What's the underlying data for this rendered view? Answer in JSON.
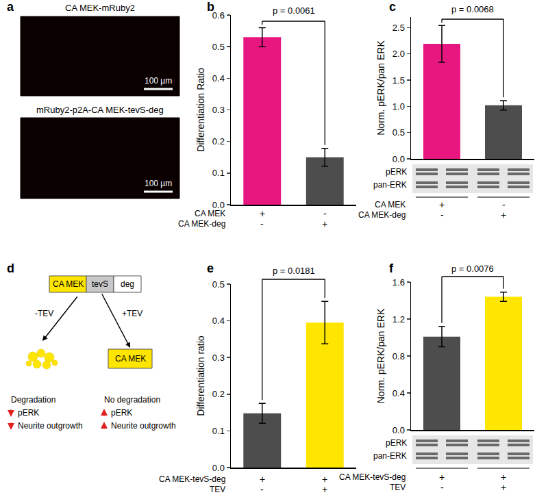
{
  "panel_a": {
    "label": "a",
    "images": [
      {
        "title": "CA MEK-mRuby2",
        "scale_bar": "100 µm"
      },
      {
        "title": "mRuby2-p2A-CA MEK-tevS-deg",
        "scale_bar": "100 µm"
      }
    ]
  },
  "panel_d": {
    "label": "d",
    "construct": [
      {
        "text": "CA MEK",
        "color": "#ffe600"
      },
      {
        "text": "tevS",
        "color": "#c8c8c8"
      },
      {
        "text": "deg",
        "color": "#ffffff"
      }
    ],
    "branches": [
      {
        "condition": "-TEV",
        "outcome": "Degradation",
        "effects": [
          "pERK",
          "Neurite outgrowth"
        ],
        "direction": "down"
      },
      {
        "condition": "+TEV",
        "product": "CA MEK",
        "outcome": "No degradation",
        "effects": [
          "pERK",
          "Neurite outgrowth"
        ],
        "direction": "up"
      }
    ]
  },
  "chart_data": [
    {
      "label": "b",
      "type": "bar",
      "categories": [
        null,
        null
      ],
      "values": [
        0.53,
        0.15
      ],
      "errors": [
        0.03,
        0.028
      ],
      "colors": [
        "#e8177f",
        "#4d4d4d"
      ],
      "ylim": [
        0,
        0.6
      ],
      "yticks": [
        {
          "value": 0,
          "label": "0.0"
        },
        0.1,
        0.2,
        0.3,
        0.4,
        0.5,
        0.6
      ],
      "y_label": "Differentiation Ratio",
      "tick_labels": "y",
      "grid": false,
      "comparison": "p = 0.0061",
      "conditions": [
        {
          "label": "CA MEK",
          "signs": [
            "+",
            "-"
          ]
        },
        {
          "label": "CA MEK-deg",
          "signs": [
            "-",
            "+"
          ]
        }
      ]
    },
    {
      "label": "c",
      "type": "bar",
      "categories": [
        null,
        null
      ],
      "values": [
        2.19,
        1.02
      ],
      "errors": [
        0.35,
        0.09
      ],
      "colors": [
        "#e8177f",
        "#4d4d4d"
      ],
      "ylim": [
        0,
        2.7
      ],
      "yticks": [
        {
          "value": 0,
          "label": "0.0"
        },
        0.5,
        {
          "value": 1,
          "label": "1.0"
        },
        1.5,
        {
          "value": 2,
          "label": "2.0"
        },
        2.5
      ],
      "y_label": "Norm. pERK/pan ERK",
      "tick_labels": "y",
      "grid": false,
      "comparison": "p = 0.0068",
      "blot": [
        "pERK",
        "pan-ERK"
      ],
      "conditions": [
        {
          "label": "CA MEK",
          "signs": [
            "+",
            "-"
          ]
        },
        {
          "label": "CA MEK-deg",
          "signs": [
            "-",
            "+"
          ]
        }
      ]
    },
    {
      "label": "e",
      "type": "bar",
      "categories": [
        null,
        null
      ],
      "values": [
        0.148,
        0.395
      ],
      "errors": [
        0.027,
        0.058
      ],
      "colors": [
        "#4d4d4d",
        "#ffe600"
      ],
      "ylim": [
        0,
        0.5
      ],
      "yticks": [
        {
          "value": 0,
          "label": "0.0"
        },
        0.1,
        0.2,
        0.3,
        0.4,
        0.5
      ],
      "y_label": "Differentiation ratio",
      "tick_labels": "y",
      "grid": false,
      "comparison": "p = 0.0181",
      "conditions": [
        {
          "label": "CA MEK-tevS-deg",
          "signs": [
            "+",
            "+"
          ]
        },
        {
          "label": "TEV",
          "signs": [
            "-",
            "+"
          ]
        }
      ]
    },
    {
      "label": "f",
      "type": "bar",
      "categories": [
        null,
        null
      ],
      "values": [
        1.01,
        1.44
      ],
      "errors": [
        0.11,
        0.05
      ],
      "colors": [
        "#4d4d4d",
        "#ffe600"
      ],
      "ylim": [
        0,
        1.6
      ],
      "yticks": [
        {
          "value": 0,
          "label": "0.0"
        },
        0.4,
        0.8,
        1.2,
        1.6
      ],
      "y_label": "Norm. pERK/pan ERK",
      "tick_labels": "y",
      "grid": false,
      "comparison": "p = 0.0076",
      "blot": [
        "pERK",
        "pan-ERK"
      ],
      "conditions": [
        {
          "label": "CA MEK-tevS-deg",
          "signs": [
            "+",
            "+"
          ]
        },
        {
          "label": "TEV",
          "signs": [
            "-",
            "+"
          ]
        }
      ]
    }
  ]
}
